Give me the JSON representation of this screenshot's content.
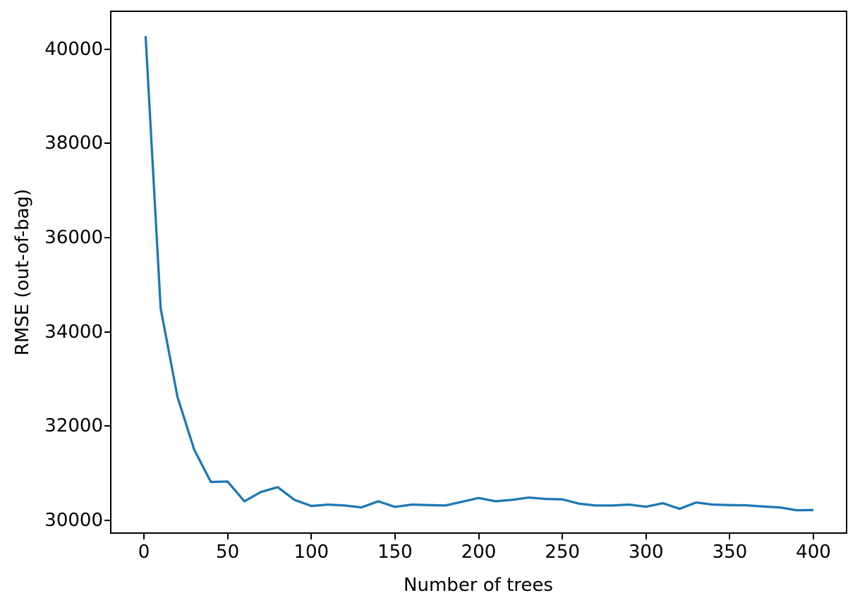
{
  "chart_data": {
    "type": "line",
    "title": "",
    "xlabel": "Number of trees",
    "ylabel": "RMSE (out-of-bag)",
    "x": [
      1,
      10,
      20,
      30,
      40,
      50,
      60,
      70,
      80,
      90,
      100,
      110,
      120,
      130,
      140,
      150,
      160,
      170,
      180,
      190,
      200,
      210,
      220,
      230,
      240,
      250,
      260,
      270,
      280,
      290,
      300,
      310,
      320,
      330,
      340,
      350,
      360,
      370,
      380,
      390,
      400
    ],
    "series": [
      {
        "name": "RMSE (out-of-bag)",
        "color": "#1f77b4",
        "values": [
          40280,
          34500,
          32620,
          31500,
          30810,
          30820,
          30400,
          30600,
          30700,
          30430,
          30300,
          30330,
          30310,
          30270,
          30400,
          30280,
          30330,
          30320,
          30310,
          30390,
          30470,
          30400,
          30430,
          30480,
          30450,
          30440,
          30350,
          30310,
          30310,
          30330,
          30285,
          30360,
          30240,
          30375,
          30330,
          30320,
          30315,
          30290,
          30270,
          30210,
          30215
        ]
      }
    ],
    "xlim": [
      -19.4,
      419.4
    ],
    "ylim": [
      29740,
      40790
    ],
    "xticks": [
      0,
      50,
      100,
      150,
      200,
      250,
      300,
      350,
      400
    ],
    "yticks": [
      30000,
      32000,
      34000,
      36000,
      38000,
      40000
    ],
    "grid": false,
    "legend": "none",
    "line_width": 3.3,
    "axes_color": "#000000",
    "background": "#ffffff"
  }
}
